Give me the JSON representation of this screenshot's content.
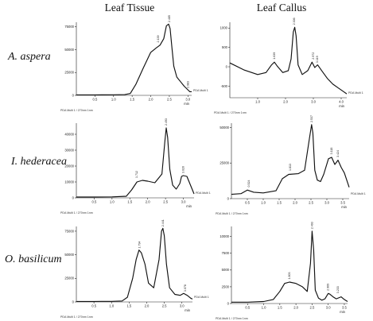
{
  "column_titles": [
    "Leaf Tissue",
    "Leaf Callus"
  ],
  "row_labels": [
    "A. aspera",
    "I. hederacea",
    "O. basilicum"
  ],
  "x_unit": "min",
  "footer": "PDA Multi 1 / 270nm 1nm",
  "side_label": "PDA Multi 1",
  "chart_data": [
    {
      "type": "line",
      "title": "",
      "xlabel": "min",
      "xlim": [
        0,
        3.1
      ],
      "ylim": [
        0,
        80000
      ],
      "xticks": [
        "0.5",
        "1.0",
        "1.5",
        "2.0",
        "2.5",
        "3.0"
      ],
      "yticks": [
        "0",
        "25000",
        "50000",
        "75000"
      ],
      "x": [
        0,
        0.5,
        1.0,
        1.3,
        1.45,
        1.6,
        1.8,
        2.0,
        2.15,
        2.25,
        2.35,
        2.42,
        2.48,
        2.52,
        2.57,
        2.62,
        2.7,
        2.8,
        2.9,
        3.0,
        3.05,
        3.1
      ],
      "y": [
        500,
        500,
        600,
        800,
        2000,
        12000,
        30000,
        47000,
        52000,
        55000,
        62000,
        76000,
        78000,
        73000,
        52000,
        32000,
        20000,
        15000,
        10000,
        6000,
        4000,
        4000
      ],
      "peak_labels": [
        {
          "x": 2.2,
          "y": 57000,
          "text": "2.139"
        },
        {
          "x": 2.5,
          "y": 79000,
          "text": "2.485"
        },
        {
          "x": 3.0,
          "y": 7000,
          "text": "2.983"
        }
      ]
    },
    {
      "type": "line",
      "title": "",
      "xlabel": "min",
      "xlim": [
        0,
        4.2
      ],
      "ylim": [
        -800,
        1150
      ],
      "xticks": [
        "1.0",
        "2.0",
        "3.0",
        "4.0"
      ],
      "yticks": [
        "-500",
        "0",
        "500",
        "1000"
      ],
      "x": [
        0,
        0.5,
        1.0,
        1.3,
        1.5,
        1.6,
        1.7,
        1.9,
        2.1,
        2.2,
        2.28,
        2.33,
        2.38,
        2.45,
        2.6,
        2.8,
        2.95,
        3.05,
        3.15,
        3.3,
        3.5,
        3.7,
        3.9,
        4.1,
        4.2
      ],
      "y": [
        100,
        -80,
        -200,
        -150,
        50,
        120,
        20,
        -150,
        -100,
        200,
        900,
        1020,
        800,
        50,
        -200,
        -100,
        120,
        -20,
        50,
        -100,
        -300,
        -450,
        -550,
        -650,
        -700
      ],
      "peak_labels": [
        {
          "x": 1.6,
          "y": 170,
          "text": "1.639"
        },
        {
          "x": 2.32,
          "y": 1060,
          "text": "2.306"
        },
        {
          "x": 3.0,
          "y": 170,
          "text": "2.972"
        },
        {
          "x": 3.15,
          "y": 80,
          "text": "3.119"
        }
      ]
    },
    {
      "type": "line",
      "title": "",
      "xlabel": "min",
      "xlim": [
        0,
        3.3
      ],
      "ylim": [
        0,
        47000
      ],
      "xticks": [
        "0.5",
        "1.0",
        "1.5",
        "2.0",
        "2.5",
        "3.0"
      ],
      "yticks": [
        "0",
        "10000",
        "20000",
        "30000",
        "40000"
      ],
      "x": [
        0,
        0.5,
        1.0,
        1.4,
        1.55,
        1.7,
        1.85,
        2.0,
        2.2,
        2.4,
        2.48,
        2.52,
        2.56,
        2.62,
        2.7,
        2.8,
        2.9,
        2.95,
        3.0,
        3.1,
        3.2,
        3.3
      ],
      "y": [
        500,
        500,
        600,
        1000,
        5000,
        10000,
        11000,
        10500,
        9500,
        15000,
        35000,
        44000,
        38000,
        18000,
        8000,
        5500,
        9000,
        13500,
        14000,
        13500,
        8000,
        2500
      ],
      "peak_labels": [
        {
          "x": 1.7,
          "y": 12000,
          "text": "1.712"
        },
        {
          "x": 2.52,
          "y": 45000,
          "text": "2.493"
        },
        {
          "x": 3.0,
          "y": 15000,
          "text": "3.020"
        }
      ]
    },
    {
      "type": "line",
      "title": "",
      "xlabel": "min",
      "xlim": [
        0,
        3.7
      ],
      "ylim": [
        0,
        53000
      ],
      "xticks": [
        "0.5",
        "1.0",
        "1.5",
        "2.0",
        "2.5",
        "3.0",
        "3.5"
      ],
      "yticks": [
        "0",
        "25000",
        "50000"
      ],
      "x": [
        0,
        0.3,
        0.5,
        0.7,
        1.0,
        1.4,
        1.6,
        1.8,
        2.1,
        2.3,
        2.45,
        2.52,
        2.56,
        2.62,
        2.7,
        2.8,
        2.9,
        3.05,
        3.15,
        3.25,
        3.35,
        3.45,
        3.55,
        3.7
      ],
      "y": [
        3000,
        3500,
        6000,
        4500,
        4000,
        5500,
        14000,
        17000,
        17500,
        20000,
        42000,
        52000,
        46000,
        20000,
        13000,
        12000,
        17000,
        28000,
        29000,
        24000,
        27000,
        22000,
        18000,
        8000
      ],
      "peak_labels": [
        {
          "x": 0.55,
          "y": 7500,
          "text": "0.524"
        },
        {
          "x": 1.85,
          "y": 19000,
          "text": "1.813"
        },
        {
          "x": 2.52,
          "y": 53000,
          "text": "2.537"
        },
        {
          "x": 3.15,
          "y": 30500,
          "text": "3.118"
        },
        {
          "x": 3.35,
          "y": 28500,
          "text": "3.424"
        }
      ]
    },
    {
      "type": "line",
      "title": "",
      "xlabel": "min",
      "xlim": [
        0,
        3.3
      ],
      "ylim": [
        0,
        80000
      ],
      "xticks": [
        "0.5",
        "1.0",
        "1.5",
        "2.0",
        "2.5",
        "3.0"
      ],
      "yticks": [
        "0",
        "25000",
        "50000",
        "75000"
      ],
      "x": [
        0,
        0.5,
        1.0,
        1.3,
        1.45,
        1.6,
        1.7,
        1.78,
        1.85,
        1.95,
        2.05,
        2.2,
        2.35,
        2.42,
        2.46,
        2.5,
        2.56,
        2.65,
        2.8,
        2.95,
        3.05,
        3.15,
        3.25,
        3.3
      ],
      "y": [
        500,
        500,
        600,
        1000,
        5000,
        25000,
        45000,
        55000,
        52000,
        40000,
        20000,
        15000,
        45000,
        75000,
        78000,
        70000,
        40000,
        15000,
        8000,
        7000,
        9000,
        7000,
        4000,
        3000
      ],
      "peak_labels": [
        {
          "x": 1.8,
          "y": 56000,
          "text": "1.794"
        },
        {
          "x": 2.46,
          "y": 79000,
          "text": "2.441"
        },
        {
          "x": 3.1,
          "y": 10000,
          "text": "3.078"
        }
      ]
    },
    {
      "type": "line",
      "title": "",
      "xlabel": "min",
      "xlim": [
        0,
        3.6
      ],
      "ylim": [
        0,
        11500
      ],
      "xticks": [
        "0.5",
        "1.0",
        "1.5",
        "2.0",
        "2.5",
        "3.0",
        "3.5"
      ],
      "yticks": [
        "0",
        "2500",
        "5000",
        "7500",
        "10000"
      ],
      "x": [
        0,
        0.5,
        1.0,
        1.3,
        1.5,
        1.65,
        1.8,
        2.0,
        2.2,
        2.35,
        2.45,
        2.5,
        2.55,
        2.6,
        2.7,
        2.8,
        2.9,
        3.0,
        3.05,
        3.15,
        3.25,
        3.4,
        3.5,
        3.6
      ],
      "y": [
        200,
        200,
        300,
        600,
        1800,
        3000,
        3200,
        3000,
        2500,
        1800,
        6000,
        10800,
        8000,
        2000,
        800,
        500,
        700,
        1500,
        1400,
        1000,
        700,
        1000,
        600,
        300
      ],
      "peak_labels": [
        {
          "x": 1.8,
          "y": 3500,
          "text": "1.803"
        },
        {
          "x": 2.5,
          "y": 11000,
          "text": "2.493"
        },
        {
          "x": 3.0,
          "y": 1800,
          "text": "2.969"
        },
        {
          "x": 3.3,
          "y": 1400,
          "text": "3.233"
        }
      ]
    }
  ]
}
